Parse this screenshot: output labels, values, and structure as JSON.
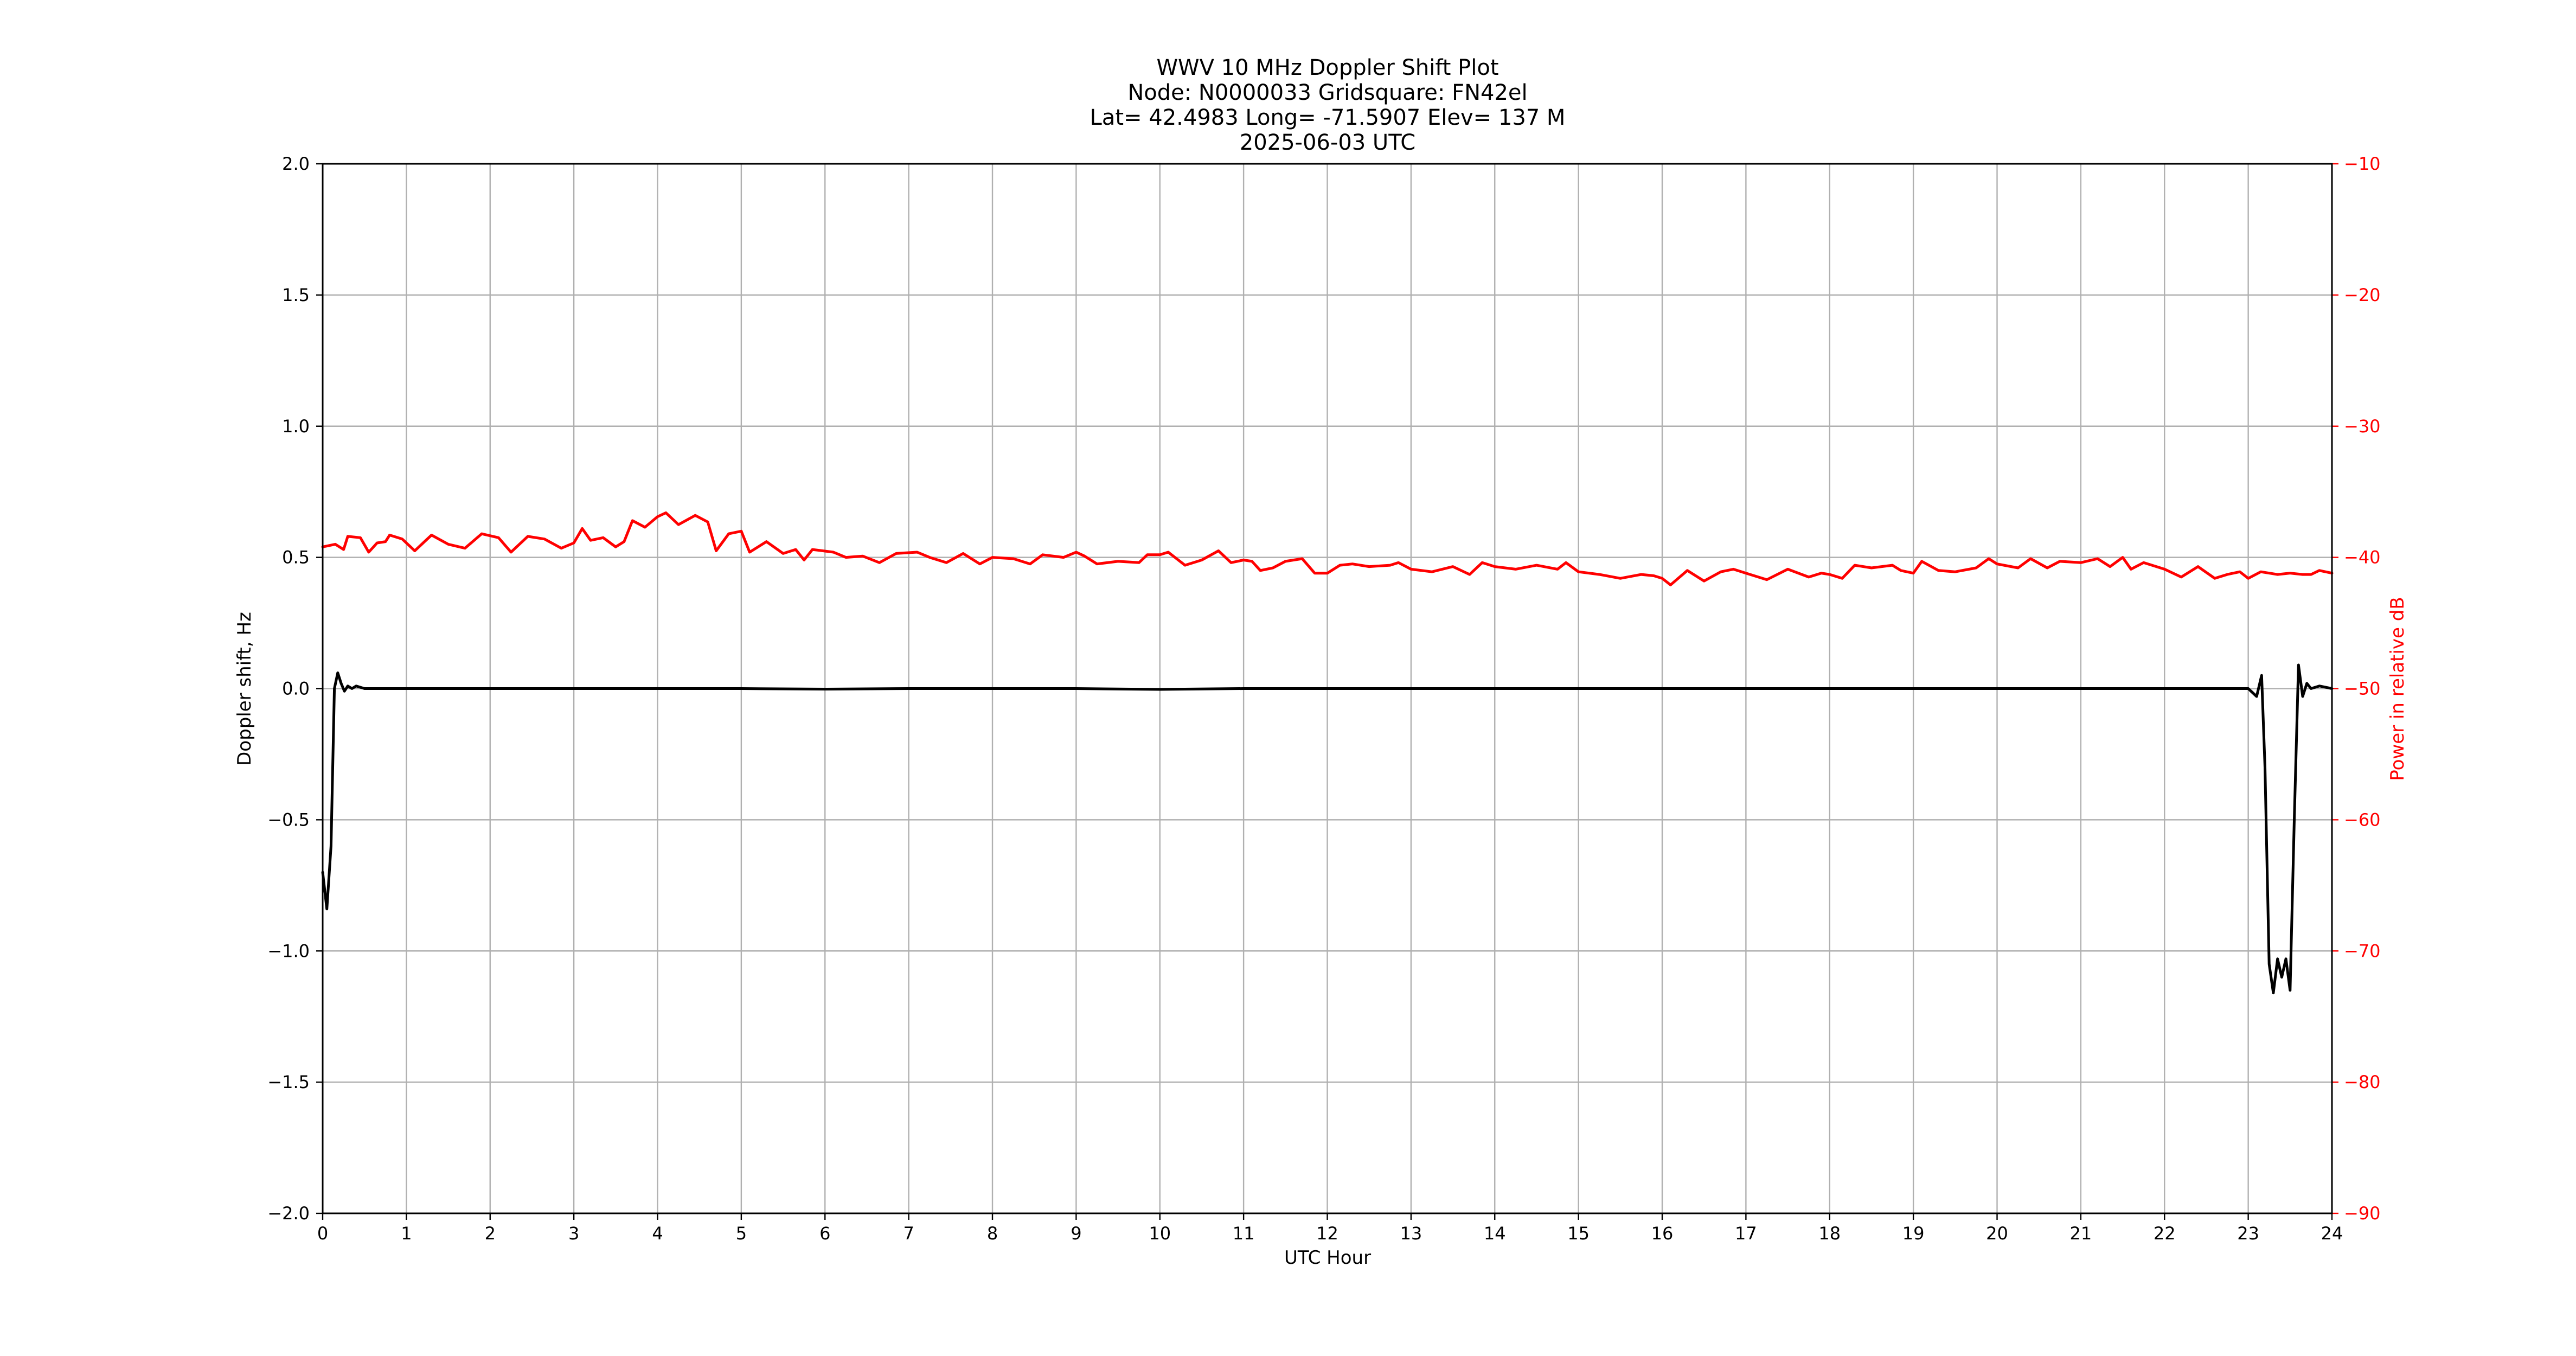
{
  "chart_data": {
    "type": "line",
    "title_lines": [
      "WWV 10 MHz Doppler Shift Plot",
      "Node:  N0000033     Gridsquare:  FN42el",
      "Lat= 42.4983    Long= -71.5907    Elev= 137 M",
      "2025-06-03  UTC"
    ],
    "xlabel": "UTC Hour",
    "ylabel_left": "Doppler shift, Hz",
    "ylabel_right": "Power in relative dB",
    "xlim": [
      0,
      24
    ],
    "ylim_left": [
      -2.0,
      2.0
    ],
    "ylim_right": [
      -90,
      -10
    ],
    "x_ticks": [
      "0",
      "1",
      "2",
      "3",
      "4",
      "5",
      "6",
      "7",
      "8",
      "9",
      "10",
      "11",
      "12",
      "13",
      "14",
      "15",
      "16",
      "17",
      "18",
      "19",
      "20",
      "21",
      "22",
      "23",
      "24"
    ],
    "y_ticks_left": [
      "2.0",
      "1.5",
      "1.0",
      "0.5",
      "0.0",
      "−0.5",
      "−1.0",
      "−1.5",
      "−2.0"
    ],
    "y_ticks_right": [
      "−10",
      "−20",
      "−30",
      "−40",
      "−50",
      "−60",
      "−70",
      "−80",
      "−90"
    ],
    "grid": true,
    "series": [
      {
        "axis": "left",
        "color": "#000000",
        "points": [
          [
            0.0,
            -0.7
          ],
          [
            0.05,
            -0.84
          ],
          [
            0.1,
            -0.6
          ],
          [
            0.14,
            0.0
          ],
          [
            0.18,
            0.06
          ],
          [
            0.22,
            0.02
          ],
          [
            0.26,
            -0.01
          ],
          [
            0.3,
            0.01
          ],
          [
            0.35,
            0.0
          ],
          [
            0.4,
            0.01
          ],
          [
            0.5,
            0.0
          ],
          [
            1.0,
            0.0
          ],
          [
            2.0,
            0.0
          ],
          [
            3.0,
            0.0
          ],
          [
            4.0,
            0.0
          ],
          [
            5.0,
            0.0
          ],
          [
            6.0,
            -0.002
          ],
          [
            7.0,
            0.0
          ],
          [
            8.0,
            0.0
          ],
          [
            9.0,
            0.0
          ],
          [
            10.0,
            -0.003
          ],
          [
            11.0,
            0.0
          ],
          [
            12.0,
            0.0
          ],
          [
            13.0,
            0.0
          ],
          [
            14.0,
            0.0
          ],
          [
            15.0,
            0.0
          ],
          [
            16.0,
            0.0
          ],
          [
            17.0,
            0.0
          ],
          [
            18.0,
            0.0
          ],
          [
            19.0,
            0.0
          ],
          [
            20.0,
            0.0
          ],
          [
            21.0,
            0.0
          ],
          [
            21.5,
            0.0
          ],
          [
            22.0,
            0.0
          ],
          [
            22.8,
            0.0
          ],
          [
            23.0,
            0.0
          ],
          [
            23.1,
            -0.03
          ],
          [
            23.16,
            0.05
          ],
          [
            23.2,
            -0.3
          ],
          [
            23.25,
            -1.05
          ],
          [
            23.3,
            -1.16
          ],
          [
            23.35,
            -1.03
          ],
          [
            23.4,
            -1.1
          ],
          [
            23.45,
            -1.03
          ],
          [
            23.5,
            -1.15
          ],
          [
            23.55,
            -0.5
          ],
          [
            23.6,
            0.09
          ],
          [
            23.65,
            -0.03
          ],
          [
            23.7,
            0.02
          ],
          [
            23.75,
            0.0
          ],
          [
            23.85,
            0.01
          ],
          [
            24.0,
            0.0
          ]
        ]
      },
      {
        "axis": "right",
        "color": "#ff0000",
        "points": [
          [
            0.0,
            -39.2
          ],
          [
            0.15,
            -39.0
          ],
          [
            0.25,
            -39.4
          ],
          [
            0.3,
            -38.4
          ],
          [
            0.45,
            -38.5
          ],
          [
            0.55,
            -39.6
          ],
          [
            0.65,
            -38.9
          ],
          [
            0.75,
            -38.8
          ],
          [
            0.8,
            -38.3
          ],
          [
            0.95,
            -38.6
          ],
          [
            1.1,
            -39.5
          ],
          [
            1.3,
            -38.3
          ],
          [
            1.5,
            -39.0
          ],
          [
            1.7,
            -39.3
          ],
          [
            1.9,
            -38.2
          ],
          [
            2.1,
            -38.5
          ],
          [
            2.25,
            -39.6
          ],
          [
            2.45,
            -38.4
          ],
          [
            2.65,
            -38.6
          ],
          [
            2.85,
            -39.3
          ],
          [
            3.0,
            -38.9
          ],
          [
            3.1,
            -37.8
          ],
          [
            3.2,
            -38.7
          ],
          [
            3.35,
            -38.5
          ],
          [
            3.5,
            -39.2
          ],
          [
            3.6,
            -38.8
          ],
          [
            3.7,
            -37.2
          ],
          [
            3.85,
            -37.7
          ],
          [
            4.0,
            -36.9
          ],
          [
            4.1,
            -36.6
          ],
          [
            4.25,
            -37.5
          ],
          [
            4.45,
            -36.8
          ],
          [
            4.6,
            -37.3
          ],
          [
            4.7,
            -39.5
          ],
          [
            4.85,
            -38.2
          ],
          [
            5.0,
            -38.0
          ],
          [
            5.1,
            -39.6
          ],
          [
            5.3,
            -38.8
          ],
          [
            5.5,
            -39.7
          ],
          [
            5.65,
            -39.4
          ],
          [
            5.75,
            -40.2
          ],
          [
            5.85,
            -39.4
          ],
          [
            6.1,
            -39.6
          ],
          [
            6.25,
            -40.0
          ],
          [
            6.45,
            -39.9
          ],
          [
            6.65,
            -40.4
          ],
          [
            6.85,
            -39.7
          ],
          [
            7.1,
            -39.6
          ],
          [
            7.25,
            -40.0
          ],
          [
            7.45,
            -40.4
          ],
          [
            7.65,
            -39.7
          ],
          [
            7.85,
            -40.5
          ],
          [
            8.0,
            -40.0
          ],
          [
            8.25,
            -40.1
          ],
          [
            8.45,
            -40.5
          ],
          [
            8.6,
            -39.8
          ],
          [
            8.85,
            -40.0
          ],
          [
            9.0,
            -39.6
          ],
          [
            9.1,
            -39.9
          ],
          [
            9.25,
            -40.5
          ],
          [
            9.5,
            -40.3
          ],
          [
            9.75,
            -40.4
          ],
          [
            9.85,
            -39.8
          ],
          [
            10.0,
            -39.8
          ],
          [
            10.1,
            -39.6
          ],
          [
            10.3,
            -40.6
          ],
          [
            10.5,
            -40.2
          ],
          [
            10.7,
            -39.5
          ],
          [
            10.85,
            -40.4
          ],
          [
            11.0,
            -40.2
          ],
          [
            11.1,
            -40.3
          ],
          [
            11.2,
            -41.0
          ],
          [
            11.35,
            -40.8
          ],
          [
            11.5,
            -40.3
          ],
          [
            11.7,
            -40.1
          ],
          [
            11.85,
            -41.2
          ],
          [
            12.0,
            -41.2
          ],
          [
            12.15,
            -40.6
          ],
          [
            12.3,
            -40.5
          ],
          [
            12.5,
            -40.7
          ],
          [
            12.75,
            -40.6
          ],
          [
            12.85,
            -40.4
          ],
          [
            13.0,
            -40.9
          ],
          [
            13.25,
            -41.1
          ],
          [
            13.5,
            -40.7
          ],
          [
            13.7,
            -41.3
          ],
          [
            13.85,
            -40.4
          ],
          [
            14.0,
            -40.7
          ],
          [
            14.25,
            -40.9
          ],
          [
            14.5,
            -40.6
          ],
          [
            14.75,
            -40.9
          ],
          [
            14.85,
            -40.4
          ],
          [
            15.0,
            -41.1
          ],
          [
            15.25,
            -41.3
          ],
          [
            15.5,
            -41.6
          ],
          [
            15.75,
            -41.3
          ],
          [
            15.9,
            -41.4
          ],
          [
            16.0,
            -41.6
          ],
          [
            16.1,
            -42.1
          ],
          [
            16.3,
            -41.0
          ],
          [
            16.5,
            -41.8
          ],
          [
            16.7,
            -41.1
          ],
          [
            16.85,
            -40.9
          ],
          [
            17.0,
            -41.2
          ],
          [
            17.25,
            -41.7
          ],
          [
            17.5,
            -40.9
          ],
          [
            17.75,
            -41.5
          ],
          [
            17.9,
            -41.2
          ],
          [
            18.0,
            -41.3
          ],
          [
            18.15,
            -41.6
          ],
          [
            18.3,
            -40.6
          ],
          [
            18.5,
            -40.8
          ],
          [
            18.75,
            -40.6
          ],
          [
            18.85,
            -41.0
          ],
          [
            19.0,
            -41.2
          ],
          [
            19.1,
            -40.3
          ],
          [
            19.3,
            -41.0
          ],
          [
            19.5,
            -41.1
          ],
          [
            19.75,
            -40.8
          ],
          [
            19.9,
            -40.1
          ],
          [
            20.0,
            -40.5
          ],
          [
            20.25,
            -40.8
          ],
          [
            20.4,
            -40.1
          ],
          [
            20.6,
            -40.8
          ],
          [
            20.75,
            -40.3
          ],
          [
            21.0,
            -40.4
          ],
          [
            21.2,
            -40.1
          ],
          [
            21.35,
            -40.7
          ],
          [
            21.5,
            -40.0
          ],
          [
            21.6,
            -40.9
          ],
          [
            21.75,
            -40.4
          ],
          [
            22.0,
            -40.9
          ],
          [
            22.2,
            -41.5
          ],
          [
            22.4,
            -40.7
          ],
          [
            22.6,
            -41.6
          ],
          [
            22.75,
            -41.3
          ],
          [
            22.9,
            -41.1
          ],
          [
            23.0,
            -41.6
          ],
          [
            23.15,
            -41.1
          ],
          [
            23.35,
            -41.3
          ],
          [
            23.5,
            -41.2
          ],
          [
            23.65,
            -41.3
          ],
          [
            23.75,
            -41.3
          ],
          [
            23.85,
            -41.0
          ],
          [
            24.0,
            -41.2
          ]
        ]
      }
    ]
  }
}
